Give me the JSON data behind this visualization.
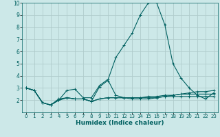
{
  "xlabel": "Humidex (Indice chaleur)",
  "xlim": [
    -0.5,
    23.5
  ],
  "ylim": [
    1,
    10
  ],
  "yticks": [
    2,
    3,
    4,
    5,
    6,
    7,
    8,
    9,
    10
  ],
  "xticks": [
    0,
    1,
    2,
    3,
    4,
    5,
    6,
    7,
    8,
    9,
    10,
    11,
    12,
    13,
    14,
    15,
    16,
    17,
    18,
    19,
    20,
    21,
    22,
    23
  ],
  "bg_color": "#cce8e8",
  "grid_color": "#b0cccc",
  "line_color": "#006060",
  "series": [
    [
      3.0,
      2.8,
      1.8,
      1.6,
      2.1,
      2.2,
      2.1,
      2.1,
      1.9,
      3.1,
      3.6,
      5.5,
      6.5,
      7.5,
      9.0,
      10.0,
      10.0,
      8.2,
      5.0,
      3.8,
      3.0,
      2.4,
      2.1,
      2.6
    ],
    [
      3.0,
      2.8,
      1.8,
      1.6,
      2.0,
      2.8,
      2.9,
      2.2,
      2.2,
      3.2,
      3.7,
      2.4,
      2.2,
      2.1,
      2.1,
      2.1,
      2.2,
      2.3,
      2.4,
      2.5,
      2.6,
      2.7,
      2.7,
      2.8
    ],
    [
      3.0,
      2.8,
      1.8,
      1.6,
      2.0,
      2.2,
      2.1,
      2.1,
      1.9,
      2.1,
      2.2,
      2.2,
      2.2,
      2.2,
      2.2,
      2.3,
      2.3,
      2.4,
      2.4,
      2.5,
      2.5,
      2.5,
      2.5,
      2.5
    ],
    [
      3.0,
      2.8,
      1.8,
      1.6,
      2.0,
      2.2,
      2.1,
      2.1,
      1.9,
      2.1,
      2.2,
      2.2,
      2.2,
      2.2,
      2.2,
      2.2,
      2.2,
      2.3,
      2.3,
      2.3,
      2.3,
      2.3,
      2.3,
      2.3
    ]
  ]
}
